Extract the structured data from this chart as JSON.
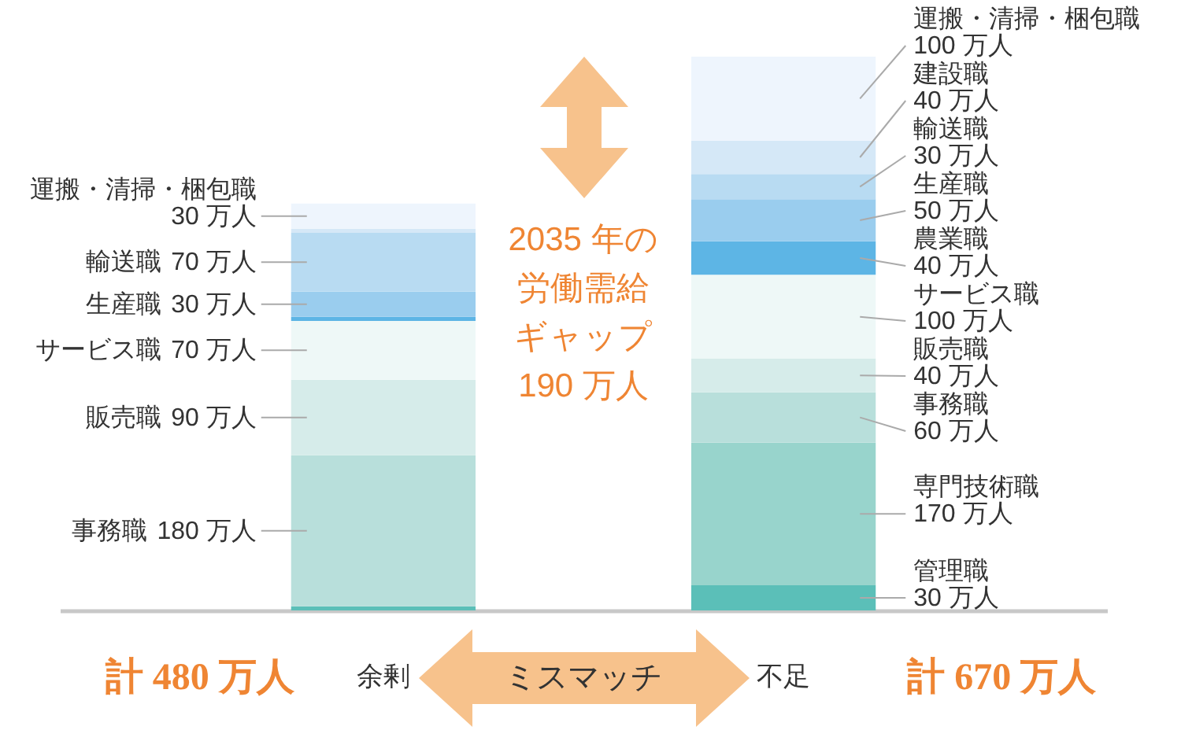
{
  "chart_data": {
    "type": "bar",
    "stacked": true,
    "tick_labels": "x",
    "categories": [
      "余剰",
      "不足"
    ],
    "series": [
      {
        "name": "管理職",
        "color": "#5bbfb8",
        "values": [
          5,
          30
        ],
        "value_labels": [
          null,
          "30 万人"
        ]
      },
      {
        "name": "専門技術職",
        "color": "#98d4cc",
        "values": [
          null,
          170
        ],
        "value_labels": [
          null,
          "170 万人"
        ]
      },
      {
        "name": "事務職",
        "color": "#b8dfdb",
        "values": [
          180,
          60
        ],
        "value_labels": [
          "180 万人",
          "60 万人"
        ]
      },
      {
        "name": "販売職",
        "color": "#d6ecea",
        "values": [
          90,
          40
        ],
        "value_labels": [
          "90 万人",
          "40 万人"
        ]
      },
      {
        "name": "サービス職",
        "color": "#eef8f7",
        "values": [
          70,
          100
        ],
        "value_labels": [
          "70 万人",
          "100 万人"
        ]
      },
      {
        "name": "農業職",
        "color": "#5db5e5",
        "values": [
          5,
          40
        ],
        "value_labels": [
          null,
          "40 万人"
        ]
      },
      {
        "name": "生産職",
        "color": "#9acdee",
        "values": [
          30,
          50
        ],
        "value_labels": [
          "30 万人",
          "50 万人"
        ]
      },
      {
        "name": "輸送職",
        "color": "#b8dbf2",
        "values": [
          70,
          30
        ],
        "value_labels": [
          "70 万人",
          "30 万人"
        ]
      },
      {
        "name": "建設職",
        "color": "#d5e8f7",
        "values": [
          5,
          40
        ],
        "value_labels": [
          null,
          "40 万人"
        ]
      },
      {
        "name": "運搬・清掃・梱包職",
        "color": "#eef5fd",
        "values": [
          30,
          100
        ],
        "value_labels": [
          "30 万人",
          "100 万人"
        ]
      }
    ],
    "annotations": [
      "2035 年の",
      "労働需給",
      "ギャップ",
      "190 万人",
      "ミスマッチ"
    ],
    "totals": [
      "計 480 万人",
      "計 670 万人"
    ]
  }
}
